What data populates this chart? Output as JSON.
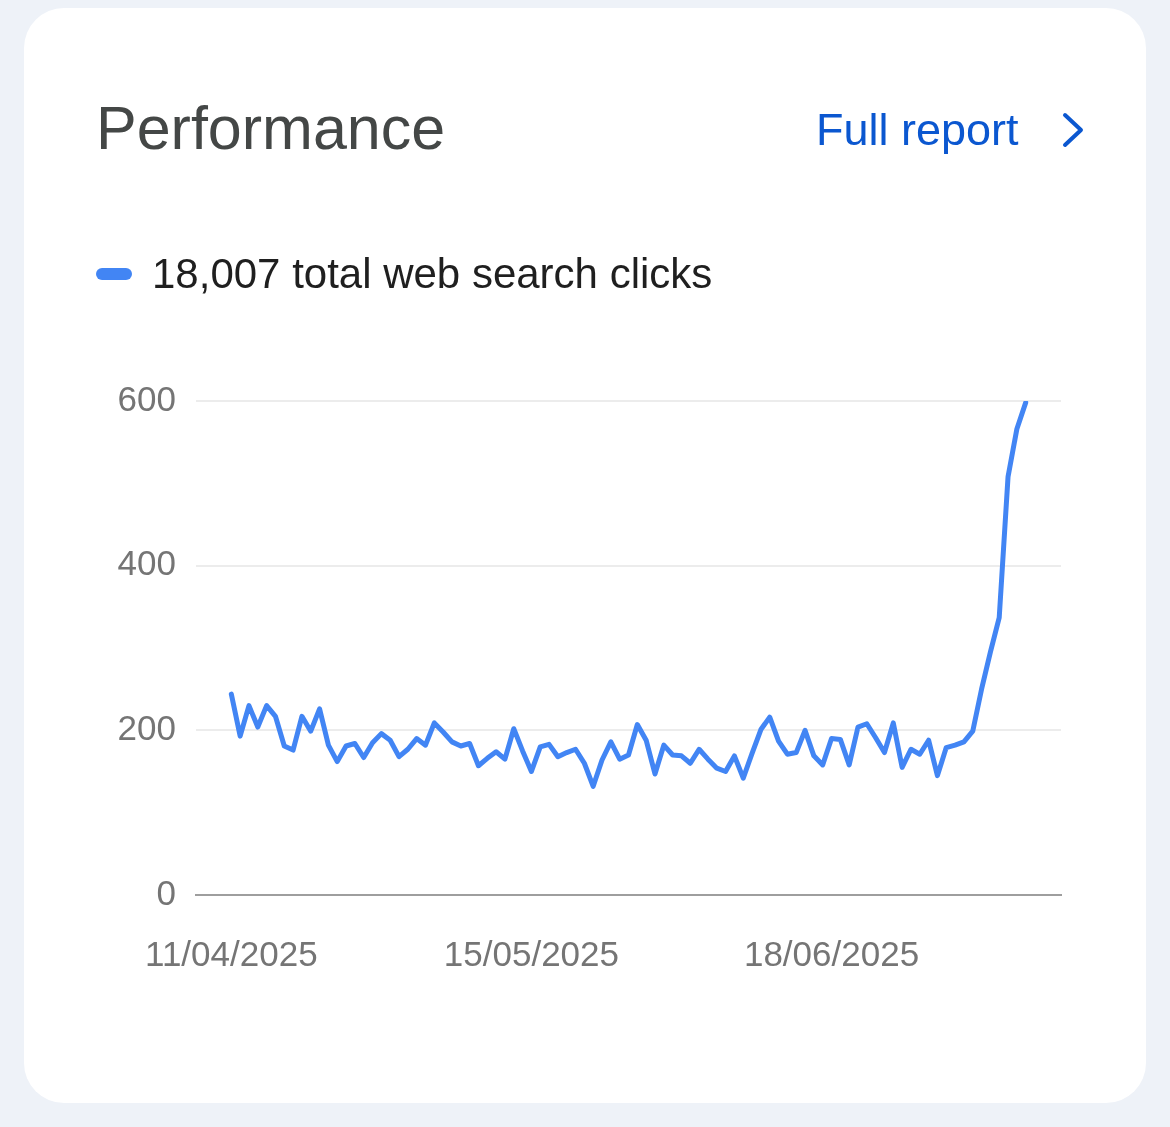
{
  "chart_data": {
    "type": "line",
    "title": "Performance",
    "annotations": [
      "Full report"
    ],
    "x": [
      "2025-04-11",
      "2025-04-12",
      "2025-04-13",
      "2025-04-14",
      "2025-04-15",
      "2025-04-16",
      "2025-04-17",
      "2025-04-18",
      "2025-04-19",
      "2025-04-20",
      "2025-04-21",
      "2025-04-22",
      "2025-04-23",
      "2025-04-24",
      "2025-04-25",
      "2025-04-26",
      "2025-04-27",
      "2025-04-28",
      "2025-04-29",
      "2025-04-30",
      "2025-05-01",
      "2025-05-02",
      "2025-05-03",
      "2025-05-04",
      "2025-05-05",
      "2025-05-06",
      "2025-05-07",
      "2025-05-08",
      "2025-05-09",
      "2025-05-10",
      "2025-05-11",
      "2025-05-12",
      "2025-05-13",
      "2025-05-14",
      "2025-05-15",
      "2025-05-16",
      "2025-05-17",
      "2025-05-18",
      "2025-05-19",
      "2025-05-20",
      "2025-05-21",
      "2025-05-22",
      "2025-05-23",
      "2025-05-24",
      "2025-05-25",
      "2025-05-26",
      "2025-05-27",
      "2025-05-28",
      "2025-05-29",
      "2025-05-30",
      "2025-05-31",
      "2025-06-01",
      "2025-06-02",
      "2025-06-03",
      "2025-06-04",
      "2025-06-05",
      "2025-06-06",
      "2025-06-07",
      "2025-06-08",
      "2025-06-09",
      "2025-06-10",
      "2025-06-11",
      "2025-06-12",
      "2025-06-13",
      "2025-06-14",
      "2025-06-15",
      "2025-06-16",
      "2025-06-17",
      "2025-06-18",
      "2025-06-19",
      "2025-06-20",
      "2025-06-21",
      "2025-06-22",
      "2025-06-23",
      "2025-06-24",
      "2025-06-25",
      "2025-06-26",
      "2025-06-27",
      "2025-06-28",
      "2025-06-29",
      "2025-06-30",
      "2025-07-01",
      "2025-07-02",
      "2025-07-03",
      "2025-07-04",
      "2025-07-05",
      "2025-07-06",
      "2025-07-07",
      "2025-07-08",
      "2025-07-09",
      "2025-07-10"
    ],
    "series": [
      {
        "name": "18,007 total web search clicks",
        "color": "#4285f4",
        "values": [
          244,
          193,
          230,
          204,
          230,
          217,
          181,
          176,
          217,
          199,
          226,
          182,
          162,
          181,
          184,
          167,
          185,
          196,
          188,
          168,
          177,
          190,
          182,
          209,
          198,
          186,
          181,
          184,
          157,
          166,
          174,
          165,
          202,
          175,
          150,
          180,
          183,
          168,
          173,
          177,
          160,
          132,
          164,
          186,
          165,
          170,
          207,
          188,
          147,
          182,
          170,
          169,
          160,
          177,
          165,
          154,
          150,
          169,
          142,
          172,
          201,
          216,
          187,
          171,
          173,
          200,
          169,
          158,
          190,
          189,
          158,
          204,
          208,
          191,
          173,
          209,
          155,
          177,
          171,
          188,
          145,
          179,
          182,
          186,
          199,
          250,
          295,
          337,
          508,
          566,
          598
        ]
      }
    ],
    "xlim": [
      "2025-04-07",
      "2025-07-14"
    ],
    "xticks": [
      {
        "value": "2025-04-11",
        "label": "11/04/2025"
      },
      {
        "value": "2025-05-15",
        "label": "15/05/2025"
      },
      {
        "value": "2025-06-18",
        "label": "18/06/2025"
      }
    ],
    "ylim": [
      0,
      600
    ],
    "yticks": [
      0,
      200,
      400,
      600
    ],
    "grid": "y",
    "legend": "top left",
    "marker": "none",
    "line_style": "solid"
  }
}
